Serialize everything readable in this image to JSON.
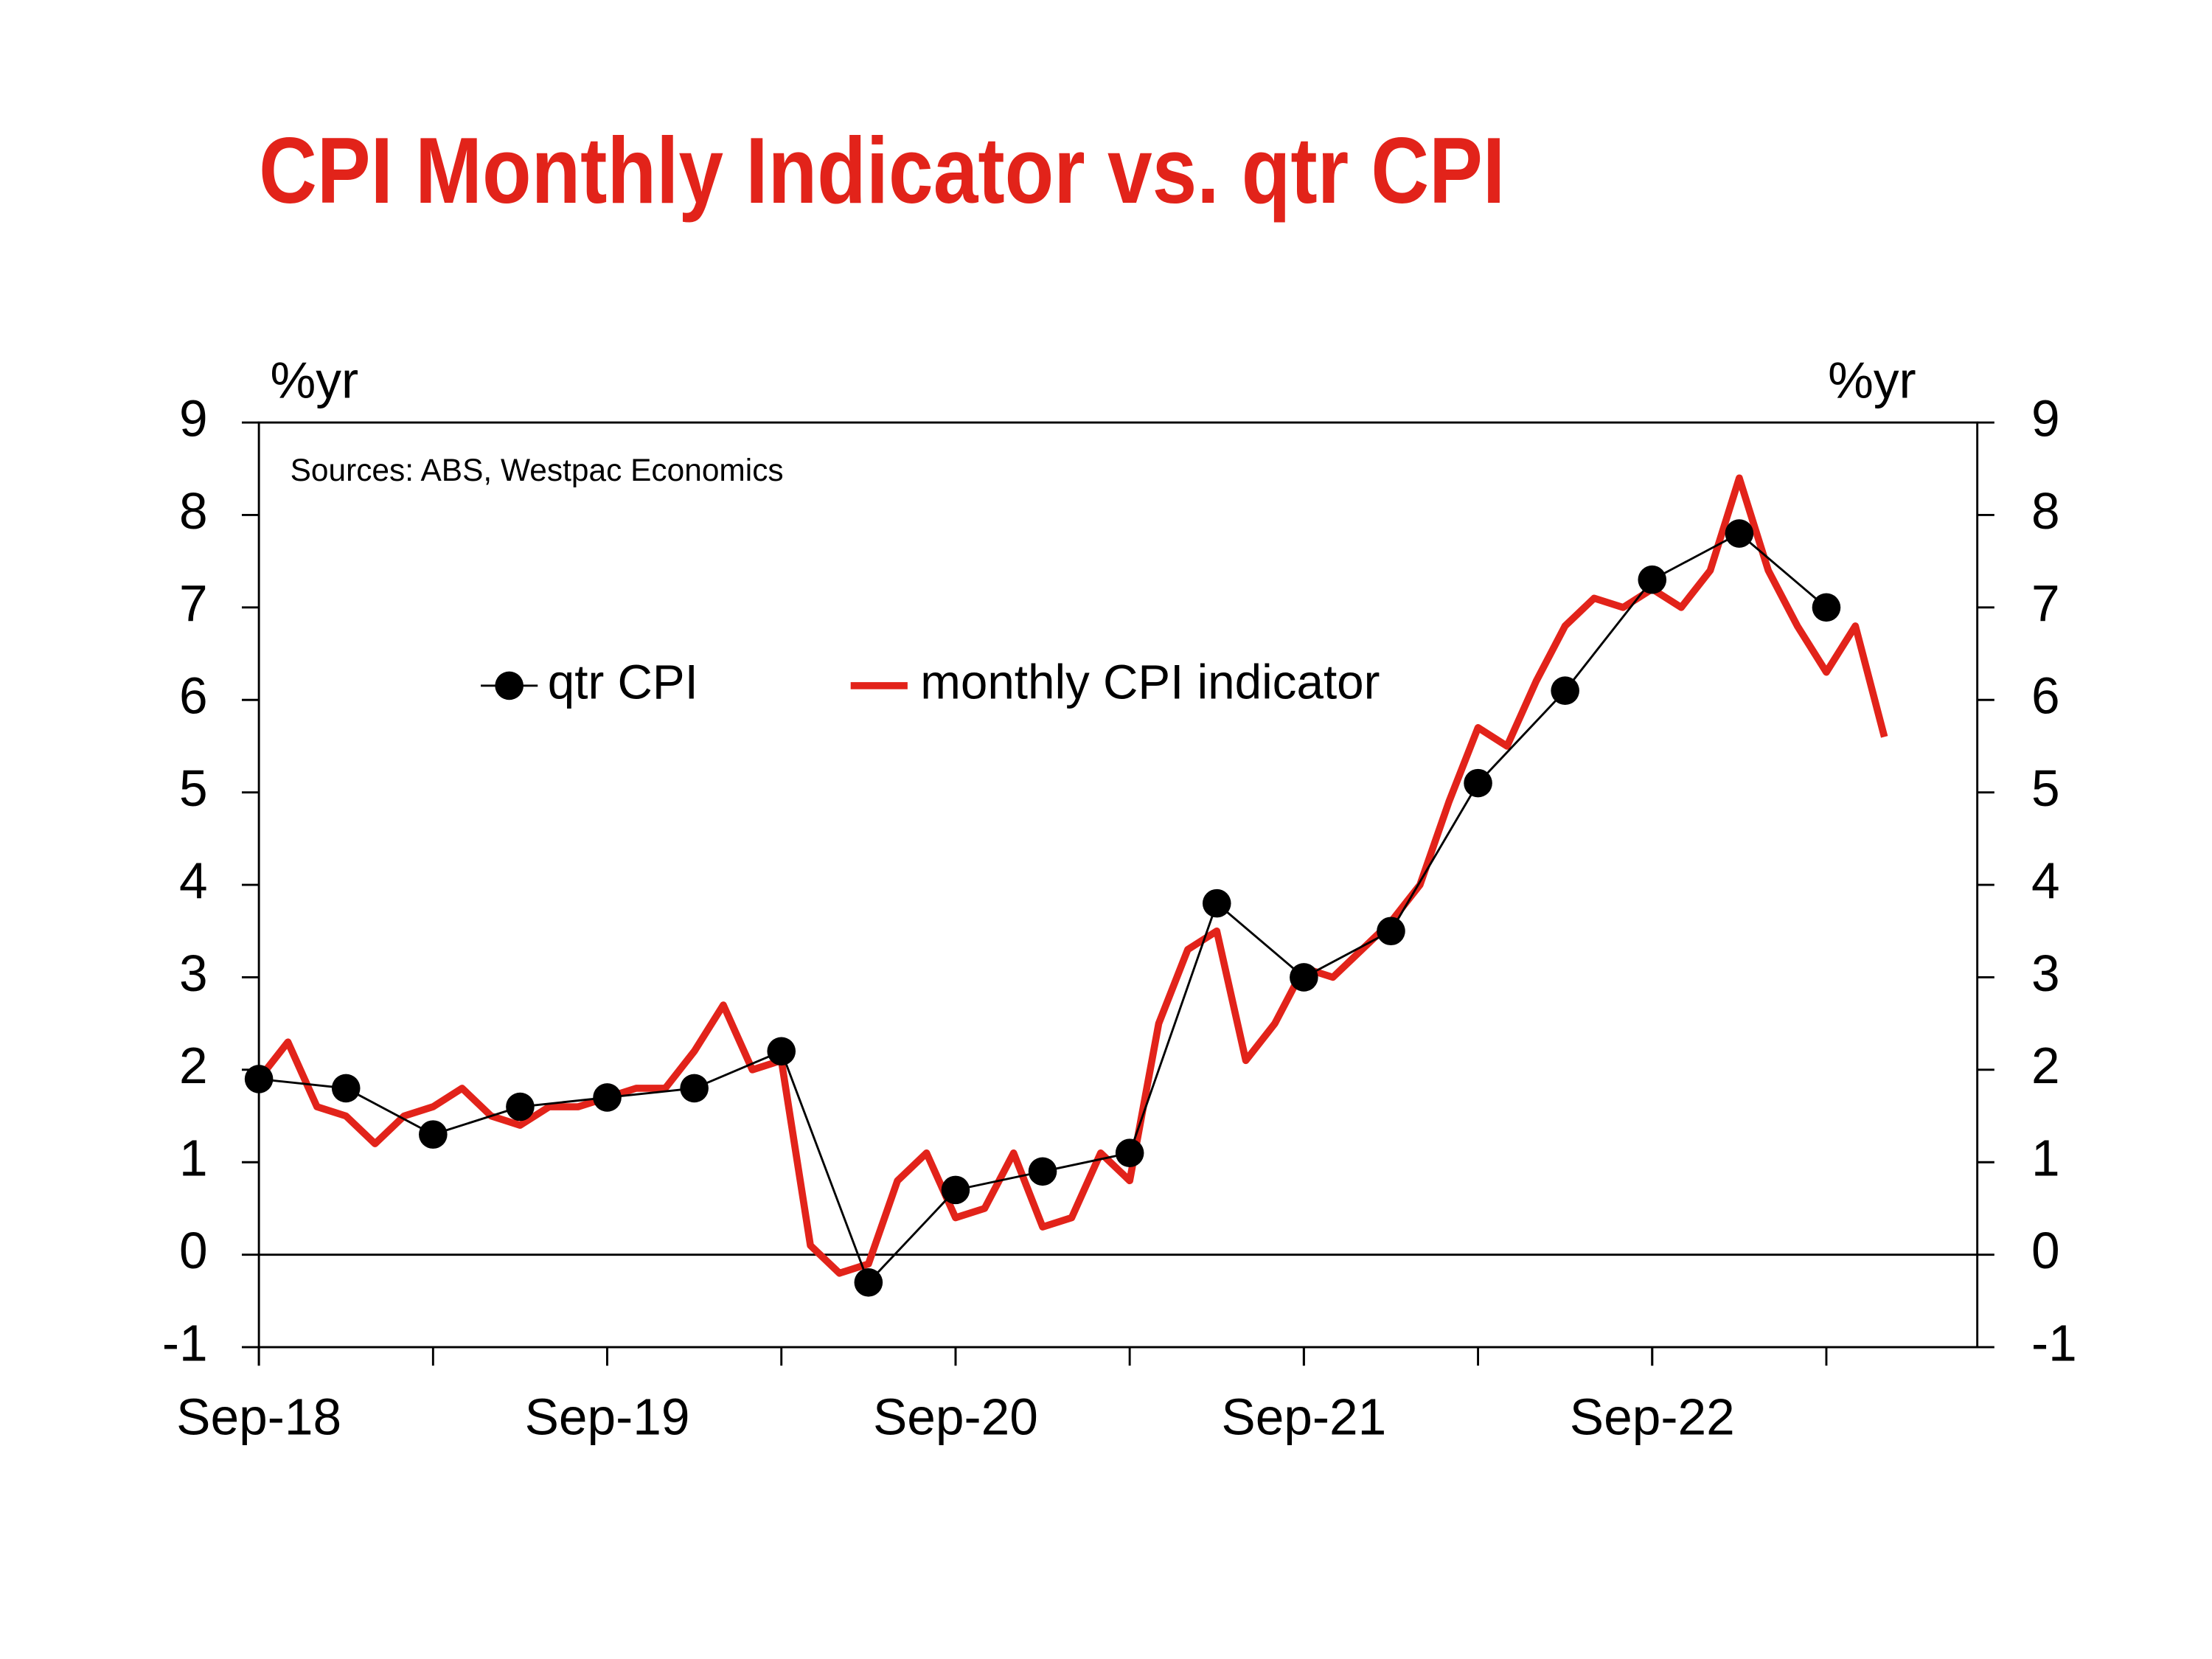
{
  "chart_data": {
    "type": "line",
    "title": "CPI Monthly Indicator vs. qtr CPI",
    "y_label_left": "%yr",
    "y_label_right": "%yr",
    "source": "Sources: ABS, Westpac Economics",
    "legend": "upper left",
    "xlim": [
      "Sep-18",
      "Aug-23"
    ],
    "xticks": [
      "Sep-18",
      "Sep-19",
      "Sep-20",
      "Sep-21",
      "Sep-22"
    ],
    "ylim": [
      -1,
      9
    ],
    "yticks": [
      -1,
      0,
      1,
      2,
      3,
      4,
      5,
      6,
      7,
      8,
      9
    ],
    "y2lim": [
      -1,
      9
    ],
    "y2ticks": [
      -1,
      0,
      1,
      2,
      3,
      4,
      5,
      6,
      7,
      8,
      9
    ],
    "series": [
      {
        "name": "qtr CPI",
        "color": "#000000",
        "marker": "circle",
        "x": [
          "Sep-18",
          "Dec-18",
          "Mar-19",
          "Jun-19",
          "Sep-19",
          "Dec-19",
          "Mar-20",
          "Jun-20",
          "Sep-20",
          "Dec-20",
          "Mar-21",
          "Jun-21",
          "Sep-21",
          "Dec-21",
          "Mar-22",
          "Jun-22",
          "Sep-22",
          "Dec-22",
          "Mar-23"
        ],
        "values": [
          1.9,
          1.8,
          1.3,
          1.6,
          1.7,
          1.8,
          2.2,
          -0.3,
          0.7,
          0.9,
          1.1,
          3.8,
          3.0,
          3.5,
          5.1,
          6.1,
          7.3,
          7.8,
          7.0
        ]
      },
      {
        "name": "monthly CPI indicator",
        "color": "#e2231a",
        "x": [
          "Sep-18",
          "Oct-18",
          "Nov-18",
          "Dec-18",
          "Jan-19",
          "Feb-19",
          "Mar-19",
          "Apr-19",
          "May-19",
          "Jun-19",
          "Jul-19",
          "Aug-19",
          "Sep-19",
          "Oct-19",
          "Nov-19",
          "Dec-19",
          "Jan-20",
          "Feb-20",
          "Mar-20",
          "Apr-20",
          "May-20",
          "Jun-20",
          "Jul-20",
          "Aug-20",
          "Sep-20",
          "Oct-20",
          "Nov-20",
          "Dec-20",
          "Jan-21",
          "Feb-21",
          "Mar-21",
          "Apr-21",
          "May-21",
          "Jun-21",
          "Jul-21",
          "Aug-21",
          "Sep-21",
          "Oct-21",
          "Nov-21",
          "Dec-21",
          "Jan-22",
          "Feb-22",
          "Mar-22",
          "Apr-22",
          "May-22",
          "Jun-22",
          "Jul-22",
          "Aug-22",
          "Sep-22",
          "Oct-22",
          "Nov-22",
          "Dec-22",
          "Jan-23",
          "Feb-23",
          "Mar-23",
          "Apr-23",
          "May-23"
        ],
        "values": [
          1.9,
          2.3,
          1.6,
          1.5,
          1.2,
          1.5,
          1.6,
          1.8,
          1.5,
          1.4,
          1.6,
          1.6,
          1.7,
          1.8,
          1.8,
          2.2,
          2.7,
          2.0,
          2.1,
          0.1,
          -0.2,
          -0.1,
          0.8,
          1.1,
          0.4,
          0.5,
          1.1,
          0.3,
          0.4,
          1.1,
          0.8,
          2.5,
          3.3,
          3.5,
          2.1,
          2.5,
          3.1,
          3.0,
          3.3,
          3.6,
          4.0,
          4.9,
          5.7,
          5.5,
          6.2,
          6.8,
          7.1,
          7.0,
          7.2,
          7.0,
          7.4,
          8.4,
          7.4,
          6.8,
          6.3,
          6.8,
          5.6
        ]
      }
    ]
  }
}
